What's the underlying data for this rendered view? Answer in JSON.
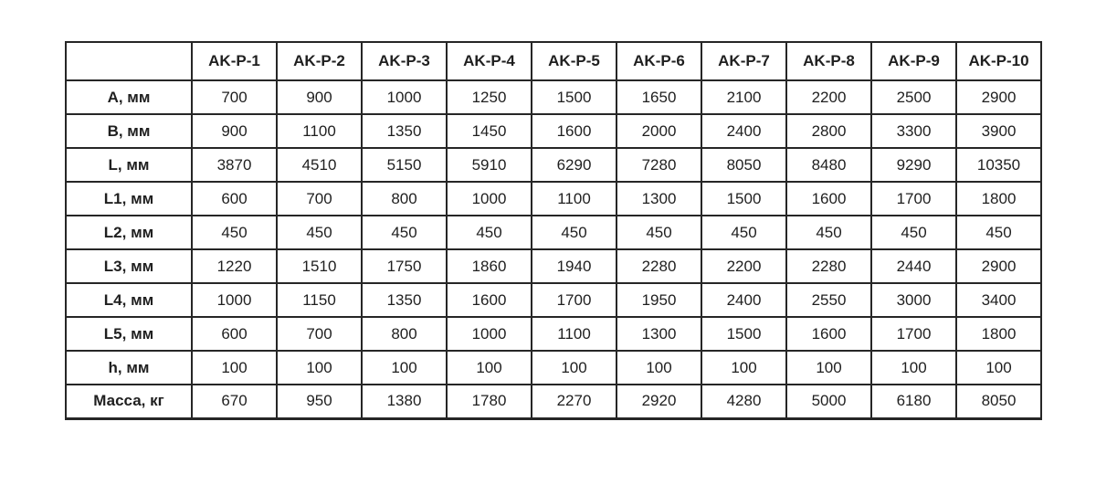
{
  "table": {
    "corner_label": "",
    "columns": [
      "AK-P-1",
      "AK-P-2",
      "AK-P-3",
      "AK-P-4",
      "AK-P-5",
      "AK-P-6",
      "AK-P-7",
      "AK-P-8",
      "AK-P-9",
      "AK-P-10"
    ],
    "rows": [
      {
        "label": "А, мм",
        "values": [
          "700",
          "900",
          "1000",
          "1250",
          "1500",
          "1650",
          "2100",
          "2200",
          "2500",
          "2900"
        ]
      },
      {
        "label": "В, мм",
        "values": [
          "900",
          "1100",
          "1350",
          "1450",
          "1600",
          "2000",
          "2400",
          "2800",
          "3300",
          "3900"
        ]
      },
      {
        "label": "L, мм",
        "values": [
          "3870",
          "4510",
          "5150",
          "5910",
          "6290",
          "7280",
          "8050",
          "8480",
          "9290",
          "10350"
        ]
      },
      {
        "label": "L1, мм",
        "values": [
          "600",
          "700",
          "800",
          "1000",
          "1100",
          "1300",
          "1500",
          "1600",
          "1700",
          "1800"
        ]
      },
      {
        "label": "L2, мм",
        "values": [
          "450",
          "450",
          "450",
          "450",
          "450",
          "450",
          "450",
          "450",
          "450",
          "450"
        ]
      },
      {
        "label": "L3, мм",
        "values": [
          "1220",
          "1510",
          "1750",
          "1860",
          "1940",
          "2280",
          "2200",
          "2280",
          "2440",
          "2900"
        ]
      },
      {
        "label": "L4, мм",
        "values": [
          "1000",
          "1150",
          "1350",
          "1600",
          "1700",
          "1950",
          "2400",
          "2550",
          "3000",
          "3400"
        ]
      },
      {
        "label": "L5, мм",
        "values": [
          "600",
          "700",
          "800",
          "1000",
          "1100",
          "1300",
          "1500",
          "1600",
          "1700",
          "1800"
        ]
      },
      {
        "label": "h, мм",
        "values": [
          "100",
          "100",
          "100",
          "100",
          "100",
          "100",
          "100",
          "100",
          "100",
          "100"
        ]
      },
      {
        "label": "Масса, кг",
        "values": [
          "670",
          "950",
          "1380",
          "1780",
          "2270",
          "2920",
          "4280",
          "5000",
          "6180",
          "8050"
        ]
      }
    ],
    "colors": {
      "border": "#262626",
      "text": "#1f1f1f",
      "background": "#ffffff"
    }
  }
}
